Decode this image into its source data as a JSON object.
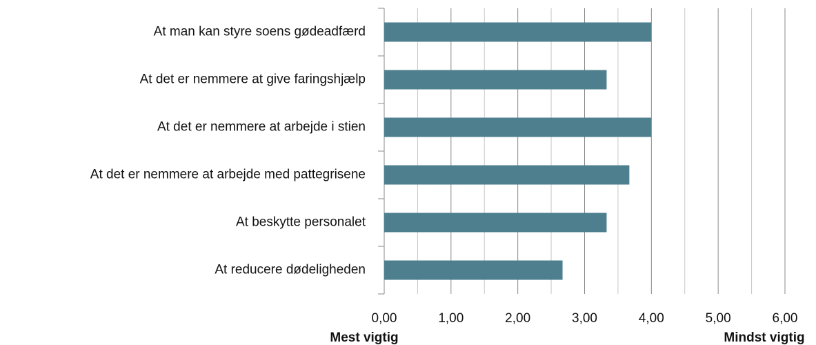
{
  "chart_data": {
    "type": "barh",
    "categories": [
      "At man kan styre soens gødeadfærd",
      "At det er nemmere at give faringshjælp",
      "At det er nemmere at arbejde i stien",
      "At det er nemmere at arbejde med pattegrisene",
      "At beskytte personalet",
      "At reducere dødeligheden"
    ],
    "values": [
      4.0,
      3.33,
      4.0,
      3.67,
      3.33,
      2.67
    ],
    "color": "#4e7f8e",
    "xlim": [
      0,
      6
    ],
    "xticks": [
      {
        "value": 0,
        "label": "0,00"
      },
      {
        "value": 1,
        "label": "1,00"
      },
      {
        "value": 2,
        "label": "2,00"
      },
      {
        "value": 3,
        "label": "3,00"
      },
      {
        "value": 4,
        "label": "4,00"
      },
      {
        "value": 5,
        "label": "5,00"
      },
      {
        "value": 6,
        "label": "6,00"
      }
    ],
    "xminorticks": [
      0.5,
      1.5,
      2.5,
      3.5,
      4.5,
      5.5
    ],
    "grid": true,
    "x_label_left": "Mest vigtig",
    "x_label_right": "Mindst vigtig"
  }
}
